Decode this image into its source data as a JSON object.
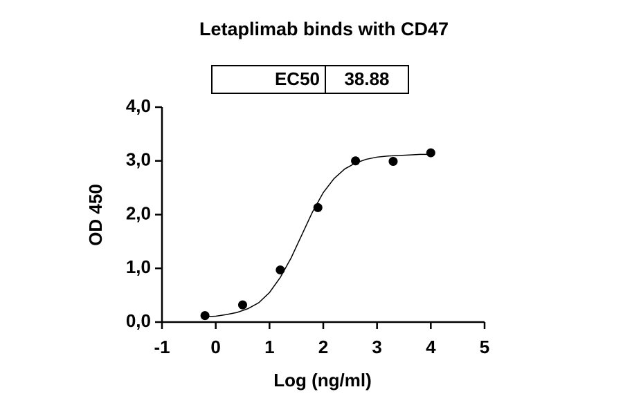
{
  "chart_data": {
    "type": "scatter",
    "title": "Letaplimab binds with CD47",
    "xlabel": "Log (ng/ml)",
    "ylabel": "OD 450",
    "ec50_table": {
      "header": "EC50",
      "value": 38.88
    },
    "xlim": [
      -1,
      5
    ],
    "ylim": [
      0,
      4
    ],
    "xticks": [
      -1,
      0,
      1,
      2,
      3,
      4,
      5
    ],
    "yticks": [
      {
        "value": 0,
        "label": "0,0"
      },
      {
        "value": 1,
        "label": "1,0"
      },
      {
        "value": 2,
        "label": "2,0"
      },
      {
        "value": 3,
        "label": "3,0"
      },
      {
        "value": 4,
        "label": "4,0"
      }
    ],
    "series": [
      {
        "color": "#000000",
        "x": [
          -0.2,
          0.5,
          1.2,
          1.9,
          2.6,
          3.3,
          4.0
        ],
        "values": [
          0.12,
          0.32,
          0.97,
          2.13,
          3.0,
          2.99,
          3.15
        ]
      },
      {
        "color": "#000000",
        "line": true,
        "x": [
          -0.2,
          0,
          0.2,
          0.4,
          0.6,
          0.8,
          1.0,
          1.2,
          1.4,
          1.6,
          1.8,
          2.0,
          2.2,
          2.4,
          2.6,
          2.8,
          3.0,
          3.2,
          3.4,
          3.6,
          3.8,
          4.0
        ],
        "values": [
          0.1,
          0.11,
          0.14,
          0.18,
          0.25,
          0.36,
          0.55,
          0.83,
          1.19,
          1.62,
          2.05,
          2.41,
          2.67,
          2.85,
          2.96,
          3.03,
          3.07,
          3.09,
          3.1,
          3.11,
          3.12,
          3.12
        ]
      }
    ]
  }
}
